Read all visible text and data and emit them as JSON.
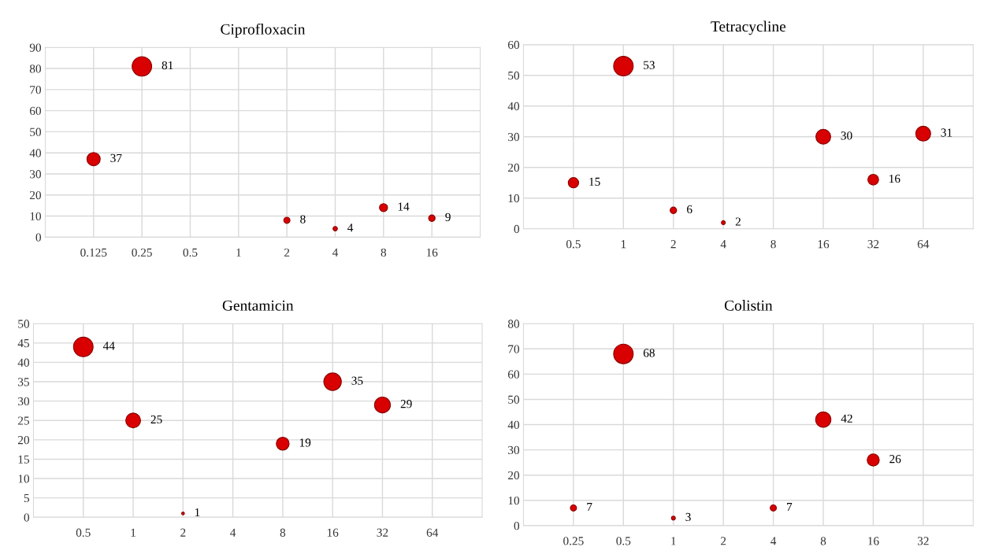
{
  "chart_data": [
    {
      "type": "bubble",
      "title": "Ciprofloxacin",
      "categories": [
        "0.125",
        "0.25",
        "0.5",
        "1",
        "2",
        "4",
        "8",
        "16"
      ],
      "values": [
        37,
        81,
        null,
        null,
        8,
        4,
        14,
        9
      ],
      "sizes": [
        0.46,
        1,
        null,
        null,
        0.1,
        0.05,
        0.17,
        0.11
      ],
      "color": "#d80000",
      "ylim": [
        0,
        90
      ],
      "yticks": [
        0,
        10,
        20,
        30,
        40,
        50,
        60,
        70,
        80,
        90
      ],
      "grid": true,
      "data_labels": true
    },
    {
      "type": "bubble",
      "title": "Tetracycline",
      "categories": [
        "0.5",
        "1",
        "2",
        "4",
        "8",
        "16",
        "32",
        "64"
      ],
      "values": [
        15,
        53,
        6,
        2,
        null,
        30,
        16,
        31
      ],
      "sizes": [
        0.28,
        1,
        0.11,
        0.04,
        null,
        0.57,
        0.3,
        0.58
      ],
      "color": "#d80000",
      "ylim": [
        0,
        60
      ],
      "yticks": [
        0,
        10,
        20,
        30,
        40,
        50,
        60
      ],
      "grid": true,
      "data_labels": true
    },
    {
      "type": "bubble",
      "title": "Gentamicin",
      "categories": [
        "0.5",
        "1",
        "2",
        "4",
        "8",
        "16",
        "32",
        "64"
      ],
      "values": [
        44,
        25,
        1,
        null,
        19,
        35,
        29,
        null
      ],
      "sizes": [
        1,
        0.57,
        0.02,
        null,
        0.43,
        0.8,
        0.66,
        null
      ],
      "color": "#d80000",
      "ylim": [
        0,
        50
      ],
      "yticks": [
        0,
        5,
        10,
        15,
        20,
        25,
        30,
        35,
        40,
        45,
        50
      ],
      "grid": true,
      "data_labels": true
    },
    {
      "type": "bubble",
      "title": "Colistin",
      "categories": [
        "0.25",
        "0.5",
        "1",
        "2",
        "4",
        "8",
        "16",
        "32"
      ],
      "values": [
        7,
        68,
        3,
        null,
        7,
        42,
        26,
        null
      ],
      "sizes": [
        0.1,
        1,
        0.04,
        null,
        0.1,
        0.62,
        0.38,
        null
      ],
      "color": "#d80000",
      "ylim": [
        0,
        80
      ],
      "yticks": [
        0,
        10,
        20,
        30,
        40,
        50,
        60,
        70,
        80
      ],
      "grid": true,
      "data_labels": true
    }
  ]
}
